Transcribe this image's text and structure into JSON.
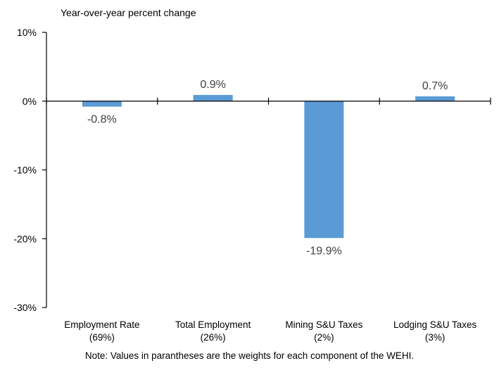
{
  "chart_data": {
    "type": "bar",
    "ylabel": "Year-over-year percent change",
    "categories": [
      [
        "Employment Rate",
        "(69%)"
      ],
      [
        "Total Employment",
        "(26%)"
      ],
      [
        "Mining S&U Taxes",
        "(2%)"
      ],
      [
        "Lodging S&U Taxes",
        "(3%)"
      ]
    ],
    "values": [
      -0.8,
      0.9,
      -19.9,
      0.7
    ],
    "data_labels": [
      "-0.8%",
      "0.9%",
      "-19.9%",
      "0.7%"
    ],
    "ylim": [
      -30,
      10
    ],
    "yticks": [
      10,
      0,
      -10,
      -20,
      -30
    ],
    "ytick_labels": [
      "10%",
      "0%",
      "-10%",
      "-20%",
      "-30%"
    ],
    "bar_color": "#5b9bd5",
    "grid": false,
    "note": "Note: Values in parantheses are the weights for each component of the WEHI."
  }
}
